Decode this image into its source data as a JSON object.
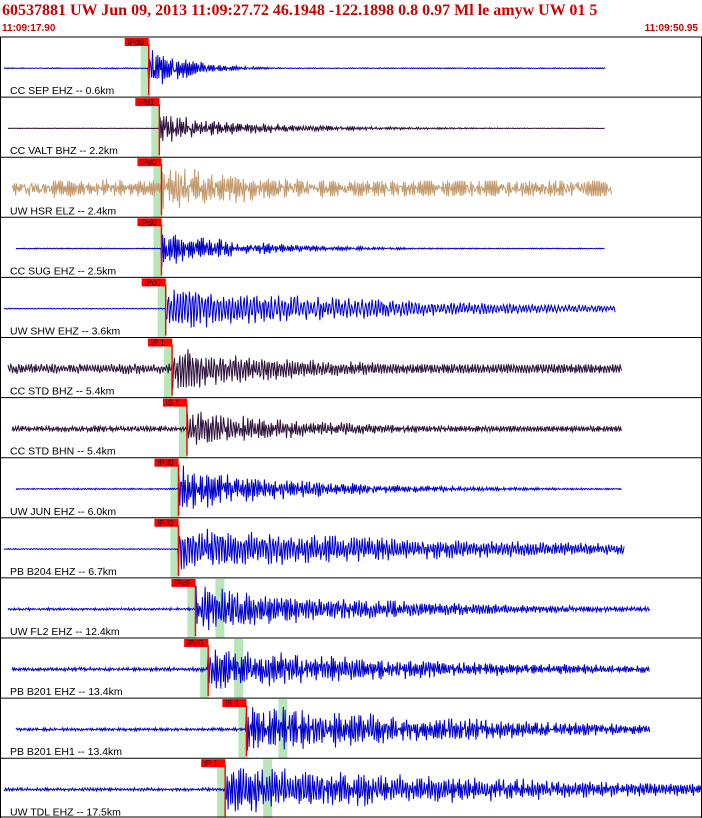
{
  "header": {
    "title": "60537881 UW Jun 09, 2013 11:09:27.72    46.1948 -122.1898  0.8 0.97 Ml le amyw UW 01    5",
    "time_start": "11:09:17.90",
    "time_end": "11:09:50.95"
  },
  "colors": {
    "blue": "#0000cc",
    "purple": "#2a0f3a",
    "tan": "#c49a6c",
    "pick_red": "#ff0000",
    "highlight_green": "#b9e6b9"
  },
  "chart_data": {
    "type": "line",
    "title": "60537881 UW Jun 09, 2013 11:09:27.72    46.1948 -122.1898  0.8 0.97 Ml le amyw UW 01    5",
    "x_start": "11:09:17.90",
    "x_end": "11:09:50.95",
    "grid": false,
    "legend": "none",
    "traces": [
      {
        "label": "CC SEP EHZ -- 0.6km",
        "color": "#0000cc",
        "pick": "iPd0",
        "pick_time": 7.0,
        "end_time": 28.5,
        "pre_amp": 0.02,
        "peak_amp": 1.0,
        "decay": 0.28,
        "freq": 3.2
      },
      {
        "label": "CC VALT BHZ -- 2.2km",
        "color": "#2a0f3a",
        "pick": "iPd1",
        "pick_time": 7.5,
        "end_time": 28.5,
        "pre_amp": 0.01,
        "peak_amp": 0.55,
        "decay": 0.1,
        "freq": 2.6
      },
      {
        "label": "UW HSR ELZ -- 2.4km",
        "color": "#c49a6c",
        "pick": "iPd0",
        "pick_time": 7.6,
        "end_time": 28.8,
        "pre_amp": 0.35,
        "peak_amp": 0.85,
        "decay": 0.06,
        "freq": 3.0
      },
      {
        "label": "CC SUG EHZ -- 2.5km",
        "color": "#0000cc",
        "pick": "iPd0",
        "pick_time": 7.6,
        "end_time": 28.5,
        "pre_amp": 0.02,
        "peak_amp": 0.75,
        "decay": 0.12,
        "freq": 2.8
      },
      {
        "label": "UW SHW EHZ -- 3.6km",
        "color": "#0000cc",
        "pick": "iPd0",
        "pick_time": 7.8,
        "end_time": 29.0,
        "pre_amp": 0.02,
        "peak_amp": 0.8,
        "decay": 0.04,
        "freq": 1.8
      },
      {
        "label": "CC STD BHZ -- 5.4km",
        "color": "#2a0f3a",
        "pick": "iP 1",
        "pick_time": 8.1,
        "end_time": 29.3,
        "pre_amp": 0.2,
        "peak_amp": 0.8,
        "decay": 0.06,
        "freq": 2.2
      },
      {
        "label": "CC STD BHN -- 5.4km",
        "color": "#2a0f3a",
        "pick": "iS 1",
        "pick_time": 8.8,
        "end_time": 29.3,
        "pre_amp": 0.12,
        "peak_amp": 0.7,
        "decay": 0.07,
        "freq": 2.4
      },
      {
        "label": "UW JUN EHZ -- 6.0km",
        "color": "#0000cc",
        "pick": "iPd0",
        "pick_time": 8.4,
        "end_time": 29.3,
        "pre_amp": 0.03,
        "peak_amp": 0.9,
        "decay": 0.08,
        "freq": 2.6
      },
      {
        "label": "PB B204 EHZ -- 6.7km",
        "color": "#0000cc",
        "pick": "iPd0",
        "pick_time": 8.4,
        "end_time": 29.4,
        "pre_amp": 0.02,
        "peak_amp": 0.8,
        "decay": 0.03,
        "freq": 2.2
      },
      {
        "label": "UW FL2 EHZ -- 12.4km",
        "color": "#0000cc",
        "pick": "iPc0",
        "pick_time": 9.2,
        "end_time": 30.6,
        "pre_amp": 0.05,
        "peak_amp": 0.85,
        "decay": 0.05,
        "freq": 2.4
      },
      {
        "label": "PB B201 EHZ -- 13.4km",
        "color": "#0000cc",
        "pick": "iPd0",
        "pick_time": 9.8,
        "end_time": 30.6,
        "pre_amp": 0.07,
        "peak_amp": 0.8,
        "decay": 0.04,
        "freq": 2.6
      },
      {
        "label": "PB B201 EH1 -- 13.4km",
        "color": "#0000cc",
        "pick": "iS 1",
        "pick_time": 11.6,
        "end_time": 30.6,
        "pre_amp": 0.06,
        "peak_amp": 0.95,
        "decay": 0.04,
        "freq": 2.6
      },
      {
        "label": "UW TDL EHZ -- 17.5km",
        "color": "#0000cc",
        "pick": "iP 1",
        "pick_time": 10.6,
        "end_time": 33.05,
        "pre_amp": 0.06,
        "peak_amp": 0.95,
        "decay": 0.03,
        "freq": 2.4
      }
    ]
  }
}
